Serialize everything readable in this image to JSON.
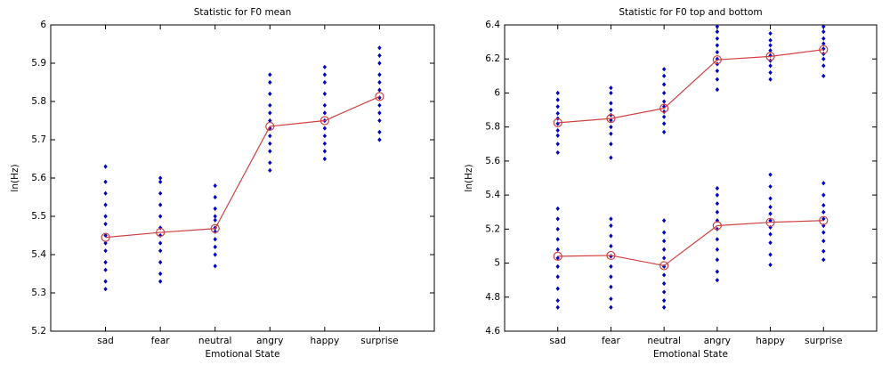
{
  "chart_data": [
    {
      "type": "strip",
      "title": "Statistic for F0 mean",
      "x_label": "Emotional State",
      "y_label": "ln(Hz)",
      "categories": [
        "sad",
        "fear",
        "neutral",
        "angry",
        "happy",
        "surprise"
      ],
      "ylim": [
        5.2,
        6
      ],
      "yticks": [
        5.2,
        5.3,
        5.4,
        5.5,
        5.6,
        5.7,
        5.8,
        5.9,
        6
      ],
      "sample_color": "#0000cc",
      "mean_color": "#d04040",
      "series": [
        {
          "samples": [
            [
              5.31,
              5.33,
              5.36,
              5.38,
              5.41,
              5.43,
              5.45,
              5.48,
              5.5,
              5.53,
              5.56,
              5.59,
              5.63
            ],
            [
              5.33,
              5.35,
              5.38,
              5.41,
              5.43,
              5.45,
              5.47,
              5.5,
              5.53,
              5.56,
              5.59,
              5.6
            ],
            [
              5.37,
              5.4,
              5.42,
              5.44,
              5.46,
              5.47,
              5.49,
              5.5,
              5.52,
              5.55,
              5.58
            ],
            [
              5.62,
              5.64,
              5.67,
              5.69,
              5.71,
              5.73,
              5.75,
              5.77,
              5.79,
              5.82,
              5.85,
              5.87
            ],
            [
              5.65,
              5.67,
              5.69,
              5.71,
              5.73,
              5.75,
              5.77,
              5.79,
              5.82,
              5.85,
              5.87,
              5.89
            ],
            [
              5.7,
              5.72,
              5.75,
              5.77,
              5.79,
              5.81,
              5.83,
              5.85,
              5.87,
              5.9,
              5.92,
              5.94
            ]
          ],
          "means": [
            5.445,
            5.458,
            5.468,
            5.735,
            5.75,
            5.813
          ]
        }
      ]
    },
    {
      "type": "strip",
      "title": "Statistic for F0 top and bottom",
      "x_label": "Emotional State",
      "y_label": "ln(Hz)",
      "categories": [
        "sad",
        "fear",
        "neutral",
        "angry",
        "happy",
        "surprise"
      ],
      "ylim": [
        4.6,
        6.4
      ],
      "yticks": [
        4.6,
        4.8,
        5,
        5.2,
        5.4,
        5.6,
        5.8,
        6,
        6.2,
        6.4
      ],
      "sample_color": "#0000cc",
      "mean_color": "#d04040",
      "series": [
        {
          "samples": [
            [
              5.65,
              5.7,
              5.75,
              5.78,
              5.82,
              5.85,
              5.88,
              5.92,
              5.96,
              6.0
            ],
            [
              5.62,
              5.7,
              5.76,
              5.8,
              5.84,
              5.87,
              5.9,
              5.94,
              6.0,
              6.03
            ],
            [
              5.77,
              5.82,
              5.86,
              5.89,
              5.92,
              5.95,
              6.0,
              6.05,
              6.1,
              6.14
            ],
            [
              6.02,
              6.08,
              6.13,
              6.17,
              6.2,
              6.24,
              6.28,
              6.32,
              6.36,
              6.39
            ],
            [
              6.08,
              6.12,
              6.16,
              6.19,
              6.22,
              6.25,
              6.28,
              6.31,
              6.35
            ],
            [
              6.1,
              6.16,
              6.2,
              6.23,
              6.26,
              6.29,
              6.32,
              6.36,
              6.39
            ]
          ],
          "means": [
            5.825,
            5.85,
            5.91,
            6.195,
            6.215,
            6.255
          ]
        },
        {
          "samples": [
            [
              4.74,
              4.78,
              4.85,
              4.92,
              4.98,
              5.03,
              5.08,
              5.14,
              5.2,
              5.26,
              5.32
            ],
            [
              4.74,
              4.79,
              4.86,
              4.92,
              4.98,
              5.04,
              5.1,
              5.16,
              5.22,
              5.26
            ],
            [
              4.74,
              4.78,
              4.83,
              4.88,
              4.93,
              4.98,
              5.03,
              5.08,
              5.13,
              5.18,
              5.25
            ],
            [
              4.9,
              4.95,
              5.02,
              5.08,
              5.14,
              5.2,
              5.25,
              5.3,
              5.35,
              5.4,
              5.44
            ],
            [
              4.99,
              5.05,
              5.12,
              5.17,
              5.21,
              5.25,
              5.29,
              5.33,
              5.38,
              5.45,
              5.52
            ],
            [
              5.02,
              5.07,
              5.13,
              5.18,
              5.22,
              5.26,
              5.3,
              5.34,
              5.4,
              5.47
            ]
          ],
          "means": [
            5.04,
            5.045,
            4.985,
            5.22,
            5.24,
            5.25
          ]
        }
      ]
    }
  ]
}
